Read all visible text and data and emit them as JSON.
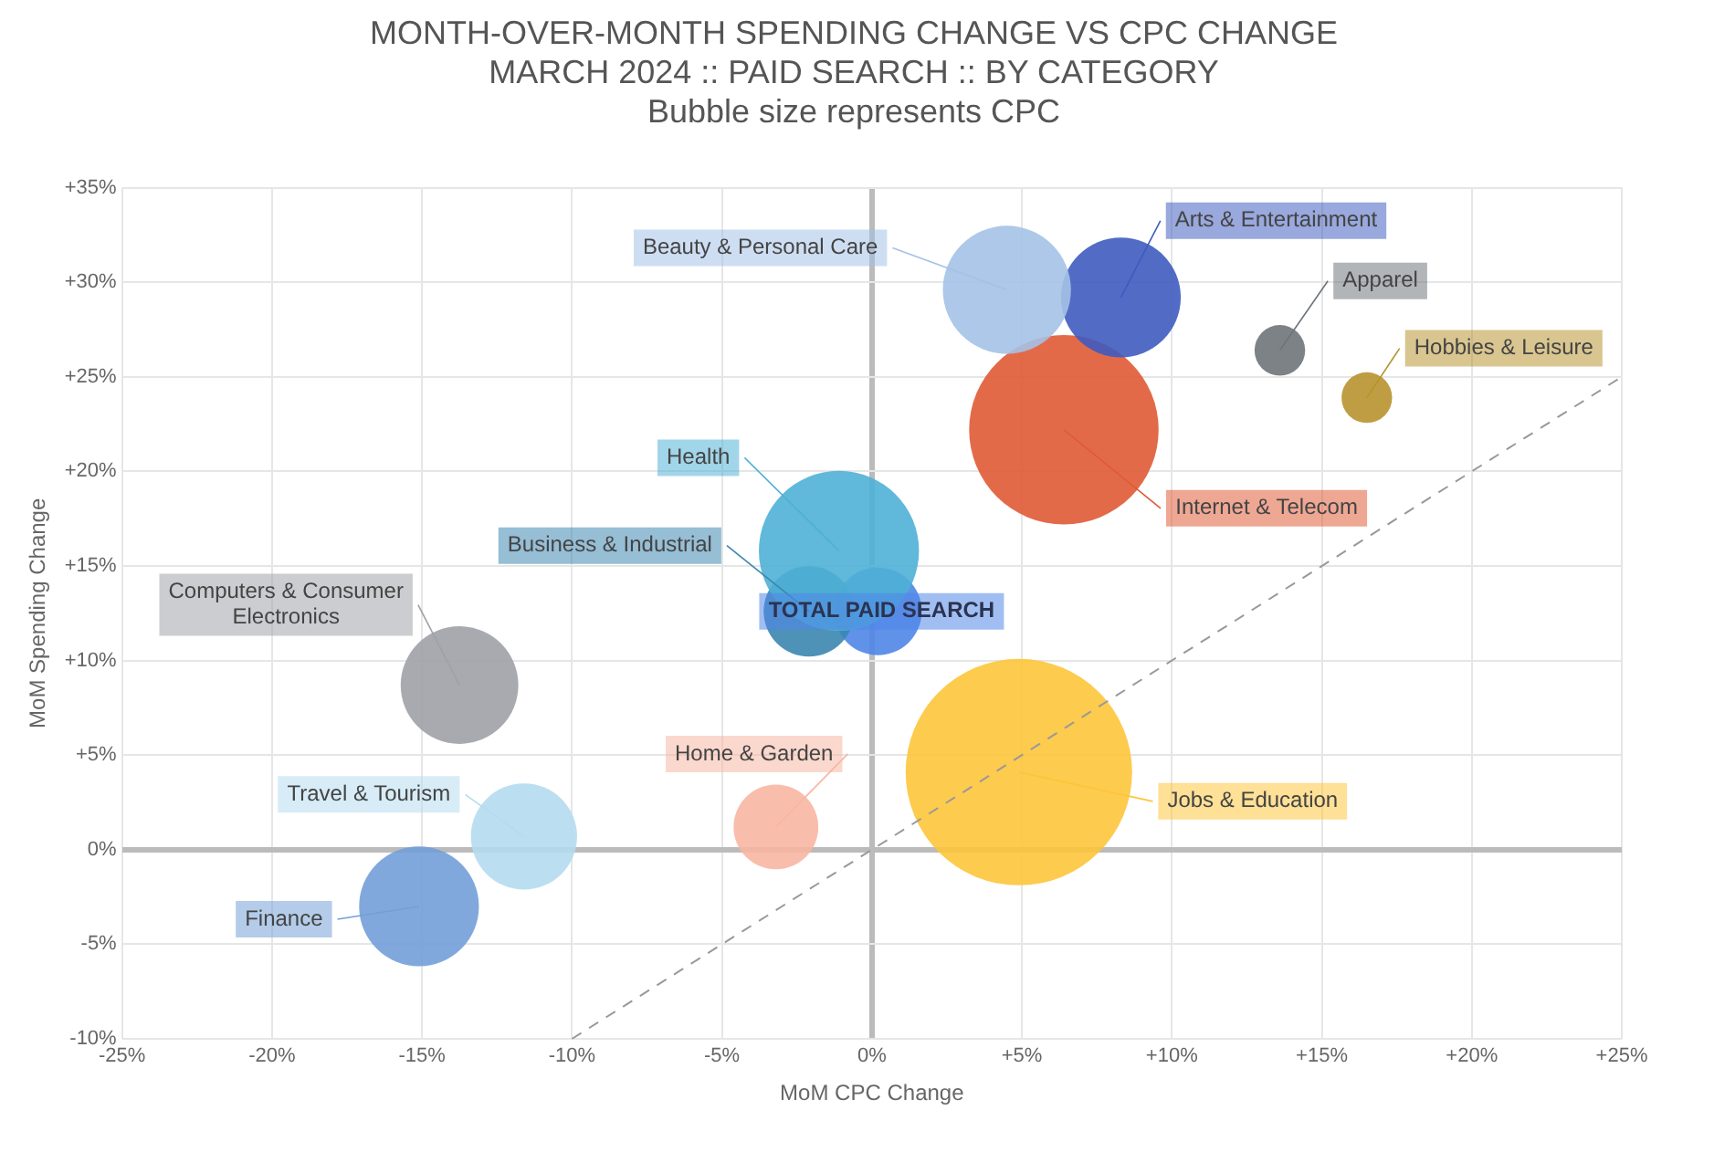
{
  "chart_data": {
    "type": "bubble",
    "title": "MONTH-OVER-MONTH SPENDING CHANGE VS CPC CHANGE",
    "subtitle": "MARCH 2024 :: PAID SEARCH :: BY CATEGORY",
    "annotations": [
      "Bubble size represents CPC"
    ],
    "xlabel": "MoM CPC Change",
    "ylabel": "MoM Spending Change",
    "xlim": [
      -25,
      25
    ],
    "xticks": [
      {
        "value": -25,
        "label": "-25%"
      },
      {
        "value": -20,
        "label": "-20%"
      },
      {
        "value": -15,
        "label": "-15%"
      },
      {
        "value": -10,
        "label": "-10%"
      },
      {
        "value": -5,
        "label": "-5%"
      },
      {
        "value": 0,
        "label": "0%"
      },
      {
        "value": 5,
        "label": "+5%"
      },
      {
        "value": 10,
        "label": "+10%"
      },
      {
        "value": 15,
        "label": "+15%"
      },
      {
        "value": 20,
        "label": "+20%"
      },
      {
        "value": 25,
        "label": "+25%"
      }
    ],
    "ylim": [
      -10,
      35
    ],
    "yticks": [
      {
        "value": -10,
        "label": "-10%"
      },
      {
        "value": -5,
        "label": "-5%"
      },
      {
        "value": 0,
        "label": "0%"
      },
      {
        "value": 5,
        "label": "+5%"
      },
      {
        "value": 10,
        "label": "+10%"
      },
      {
        "value": 15,
        "label": "+15%"
      },
      {
        "value": 20,
        "label": "+20%"
      },
      {
        "value": 25,
        "label": "+25%"
      },
      {
        "value": 30,
        "label": "+30%"
      },
      {
        "value": 35,
        "label": "+35%"
      }
    ],
    "grid": true,
    "series": [
      {
        "name": "Beauty & Personal Care",
        "color": "#a4c2e6",
        "x": [
          4.5
        ],
        "values": [
          29.6
        ],
        "sizes": [
          0.32
        ]
      },
      {
        "name": "Arts & Entertainment",
        "color": "#3f5bbf",
        "x": [
          8.3
        ],
        "values": [
          29.2
        ],
        "sizes": [
          0.28
        ]
      },
      {
        "name": "Apparel",
        "color": "#6e7479",
        "x": [
          13.6
        ],
        "values": [
          26.4
        ],
        "sizes": [
          0.05
        ]
      },
      {
        "name": "Hobbies & Leisure",
        "color": "#b8922e",
        "x": [
          16.5
        ],
        "values": [
          23.9
        ],
        "sizes": [
          0.05
        ]
      },
      {
        "name": "Internet & Telecom",
        "color": "#e05a35",
        "x": [
          6.4
        ],
        "values": [
          22.2
        ],
        "sizes": [
          0.7
        ]
      },
      {
        "name": "Health",
        "color": "#4fb0d6",
        "x": [
          -1.1
        ],
        "values": [
          15.8
        ],
        "sizes": [
          0.5
        ]
      },
      {
        "name": "Business & Industrial",
        "color": "#3b86b0",
        "x": [
          -2.1
        ],
        "values": [
          12.6
        ],
        "sizes": [
          0.16
        ]
      },
      {
        "name": "TOTAL PAID SEARCH",
        "color": "#4f86e8",
        "x": [
          0.2
        ],
        "values": [
          12.6
        ],
        "sizes": [
          0.15
        ]
      },
      {
        "name": "Computers & Consumer Electronics",
        "color": "#9ea1a6",
        "x": [
          -13.75
        ],
        "values": [
          8.7
        ],
        "sizes": [
          0.27
        ]
      },
      {
        "name": "Jobs & Education",
        "color": "#fdc53a",
        "x": [
          4.9
        ],
        "values": [
          4.1
        ],
        "sizes": [
          1
        ]
      },
      {
        "name": "Home & Garden",
        "color": "#f8b6a2",
        "x": [
          -3.2
        ],
        "values": [
          1.2
        ],
        "sizes": [
          0.14
        ]
      },
      {
        "name": "Travel & Tourism",
        "color": "#b4dcf0",
        "x": [
          -11.6
        ],
        "values": [
          0.7
        ],
        "sizes": [
          0.22
        ]
      },
      {
        "name": "Finance",
        "color": "#739fd8",
        "x": [
          -15.1
        ],
        "values": [
          -3.0
        ],
        "sizes": [
          0.28
        ]
      },
      {
        "type": "line",
        "color": "#999999",
        "line_style": "dashed",
        "marker": "none",
        "x": [
          -10,
          25
        ],
        "values": [
          -10,
          25
        ]
      }
    ]
  }
}
